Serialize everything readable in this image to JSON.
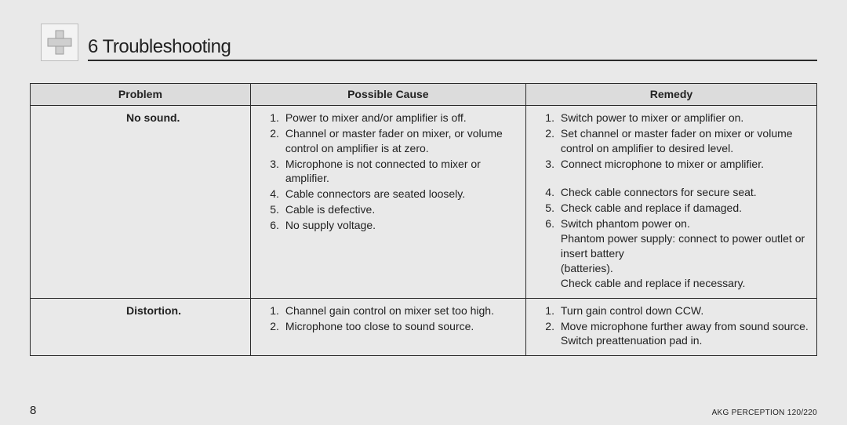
{
  "heading": "6 Troubleshooting",
  "icon": "plus-icon",
  "columns": {
    "problem": "Problem",
    "cause": "Possible Cause",
    "remedy": "Remedy"
  },
  "rows": [
    {
      "problem": "No sound.",
      "causes": [
        "Power to mixer and/or amplifier is off.",
        "Channel or master fader on mixer, or volume control on amplifier is at zero.",
        "Microphone is not connected to mixer or amplifier.",
        "Cable connectors are seated loosely.",
        "Cable is defective.",
        "No supply voltage."
      ],
      "remedies": [
        {
          "text": "Switch power to mixer or amplifier on."
        },
        {
          "text": "Set channel or master fader on mixer or volume control on amplifier to desired level."
        },
        {
          "text": "Connect microphone to mixer or amplifier."
        },
        {
          "text": "Check cable connectors for secure seat."
        },
        {
          "text": "Check cable and replace if damaged."
        },
        {
          "text": "Switch phantom power on.",
          "sub": [
            "Phantom power supply: connect to power outlet or insert battery",
            "(batteries).",
            "Check cable and replace if necessary."
          ]
        }
      ],
      "remedy_gap_before": 3
    },
    {
      "problem": "Distortion.",
      "causes": [
        "Channel gain control on mixer set too high.",
        "Microphone too close to sound source."
      ],
      "remedies": [
        {
          "text": "Turn gain control down CCW."
        },
        {
          "text": "Move microphone further away from sound source.",
          "sub": [
            "Switch preattenuation pad in."
          ]
        }
      ]
    }
  ],
  "page_number": "8",
  "doc_id": "AKG PERCEPTION 120/220",
  "colors": {
    "page_bg": "#e9e9e9",
    "header_bg": "#dcdcdc",
    "border": "#2b2b2b",
    "icon_border": "#bdbdbd",
    "icon_fill": "#cfcfcf"
  }
}
